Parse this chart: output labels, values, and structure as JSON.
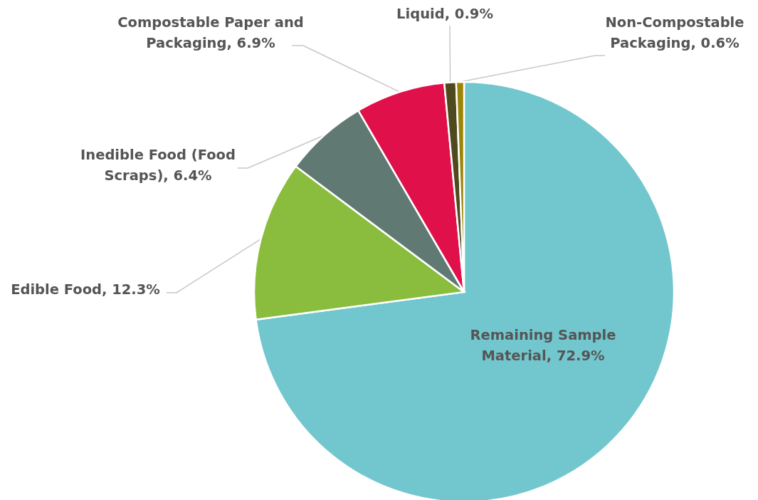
{
  "chart_data": {
    "type": "pie",
    "categories": [
      "Remaining Sample Material",
      "Edible Food",
      "Inedible Food (Food Scraps)",
      "Compostable Paper and Packaging",
      "Liquid",
      "Non-Compostable Packaging"
    ],
    "values": [
      72.9,
      12.3,
      6.4,
      6.9,
      0.9,
      0.6
    ],
    "value_labels": [
      "72.9%",
      "12.3%",
      "6.4%",
      "6.9%",
      "0.9%",
      "0.6%"
    ],
    "colors": [
      "#72c7ce",
      "#8abd3e",
      "#607a73",
      "#e0104a",
      "#4f4a1e",
      "#9b8508"
    ]
  }
}
